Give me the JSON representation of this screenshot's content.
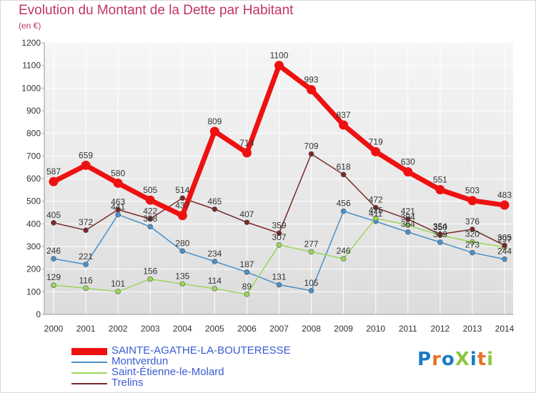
{
  "title": "Evolution du Montant de la Dette par Habitant",
  "unit": "(en €)",
  "logo_text": "ProXiti",
  "colors": {
    "title": "#c2336a",
    "plot_bg_top": "#f6f6f6",
    "plot_bg_bottom": "#dcdcdc",
    "grid": "#ffffff",
    "axis_text": "#333333",
    "legend_text": "#3b5bd6"
  },
  "chart_data": {
    "type": "line",
    "title": "Evolution du Montant de la Dette par Habitant",
    "ylabel": "(en €)",
    "xlabel": "",
    "x": [
      "2000",
      "2001",
      "2002",
      "2003",
      "2004",
      "2005",
      "2006",
      "2007",
      "2008",
      "2009",
      "2010",
      "2011",
      "2012",
      "2013",
      "2014"
    ],
    "ylim": [
      0,
      1200
    ],
    "yticks": [
      0,
      100,
      200,
      300,
      400,
      500,
      600,
      700,
      800,
      900,
      1000,
      1100,
      1200
    ],
    "grid": true,
    "legend_position": "bottom-left",
    "series": [
      {
        "name": "SAINTE-AGATHE-LA-BOUTERESSE",
        "color": "#ee1111",
        "values": [
          587,
          659,
          580,
          505,
          437,
          809,
          714,
          1100,
          993,
          837,
          719,
          630,
          551,
          503,
          483
        ]
      },
      {
        "name": "Montverdun",
        "color": "#4a90c8",
        "values": [
          246,
          221,
          441,
          388,
          280,
          234,
          187,
          131,
          105,
          456,
          411,
          364,
          319,
          273,
          244
        ]
      },
      {
        "name": "Saint-Étienne-le-Molard",
        "color": "#9ad65a",
        "values": [
          129,
          116,
          101,
          156,
          135,
          114,
          89,
          307,
          277,
          246,
          425,
          394,
          350,
          320,
          297
        ]
      },
      {
        "name": "Trelins",
        "color": "#7a2a2a",
        "values": [
          405,
          372,
          463,
          422,
          514,
          465,
          407,
          359,
          709,
          618,
          472,
          421,
          354,
          376,
          305
        ]
      }
    ]
  }
}
